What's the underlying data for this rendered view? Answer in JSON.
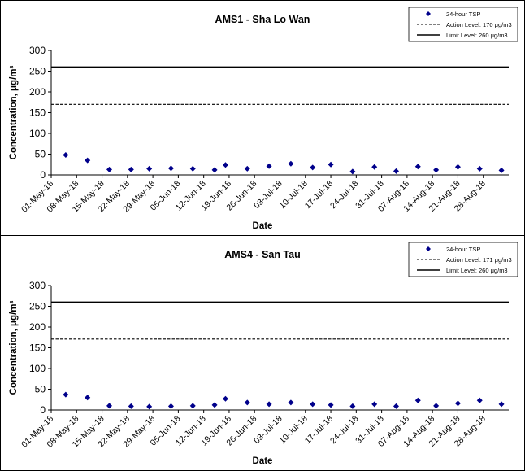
{
  "chart_data": [
    {
      "type": "scatter",
      "title": "AMS1 - Sha Lo Wan",
      "xlabel": "Date",
      "ylabel": "Concentration, μg/m³",
      "ylim": [
        0,
        300
      ],
      "yticks": [
        "0",
        "50",
        "100",
        "150",
        "200",
        "250",
        "300"
      ],
      "xticks": [
        "01-May-18",
        "08-May-18",
        "15-May-18",
        "22-May-18",
        "29-May-18",
        "05-Jun-18",
        "12-Jun-18",
        "19-Jun-18",
        "26-Jun-18",
        "03-Jul-18",
        "10-Jul-18",
        "17-Jul-18",
        "24-Jul-18",
        "31-Jul-18",
        "07-Aug-18",
        "14-Aug-18",
        "21-Aug-18",
        "28-Aug-18"
      ],
      "legend": {
        "position": "top-right",
        "entries": [
          "24-hour TSP",
          "Action Level: 170 μg/m3",
          "Limit Level: 260 μg/m3"
        ]
      },
      "action_level": 170,
      "limit_level": 260,
      "series": [
        {
          "name": "24-hour TSP",
          "color": "#00008b",
          "points": [
            {
              "x": "2018-05-05",
              "y": 48
            },
            {
              "x": "2018-05-11",
              "y": 35
            },
            {
              "x": "2018-05-17",
              "y": 13
            },
            {
              "x": "2018-05-23",
              "y": 13
            },
            {
              "x": "2018-05-28",
              "y": 15
            },
            {
              "x": "2018-06-03",
              "y": 16
            },
            {
              "x": "2018-06-09",
              "y": 15
            },
            {
              "x": "2018-06-15",
              "y": 12
            },
            {
              "x": "2018-06-18",
              "y": 24
            },
            {
              "x": "2018-06-24",
              "y": 15
            },
            {
              "x": "2018-06-30",
              "y": 21
            },
            {
              "x": "2018-07-06",
              "y": 27
            },
            {
              "x": "2018-07-12",
              "y": 18
            },
            {
              "x": "2018-07-17",
              "y": 25
            },
            {
              "x": "2018-07-23",
              "y": 8
            },
            {
              "x": "2018-07-29",
              "y": 19
            },
            {
              "x": "2018-08-04",
              "y": 9
            },
            {
              "x": "2018-08-10",
              "y": 20
            },
            {
              "x": "2018-08-15",
              "y": 12
            },
            {
              "x": "2018-08-21",
              "y": 19
            },
            {
              "x": "2018-08-27",
              "y": 15
            },
            {
              "x": "2018-09-02",
              "y": 11
            }
          ]
        }
      ]
    },
    {
      "type": "scatter",
      "title": "AMS4 - San Tau",
      "xlabel": "Date",
      "ylabel": "Concentration, μg/m³",
      "ylim": [
        0,
        300
      ],
      "yticks": [
        "0",
        "50",
        "100",
        "150",
        "200",
        "250",
        "300"
      ],
      "xticks": [
        "01-May-18",
        "08-May-18",
        "15-May-18",
        "22-May-18",
        "29-May-18",
        "05-Jun-18",
        "12-Jun-18",
        "19-Jun-18",
        "26-Jun-18",
        "03-Jul-18",
        "10-Jul-18",
        "17-Jul-18",
        "24-Jul-18",
        "31-Jul-18",
        "07-Aug-18",
        "14-Aug-18",
        "21-Aug-18",
        "28-Aug-18"
      ],
      "legend": {
        "position": "top-right",
        "entries": [
          "24-hour TSP",
          "Action Level: 171 μg/m3",
          "Limit Level: 260 μg/m3"
        ]
      },
      "action_level": 171,
      "limit_level": 260,
      "series": [
        {
          "name": "24-hour TSP",
          "color": "#00008b",
          "points": [
            {
              "x": "2018-05-05",
              "y": 37
            },
            {
              "x": "2018-05-11",
              "y": 30
            },
            {
              "x": "2018-05-17",
              "y": 10
            },
            {
              "x": "2018-05-23",
              "y": 9
            },
            {
              "x": "2018-05-28",
              "y": 8
            },
            {
              "x": "2018-06-03",
              "y": 9
            },
            {
              "x": "2018-06-09",
              "y": 10
            },
            {
              "x": "2018-06-15",
              "y": 12
            },
            {
              "x": "2018-06-18",
              "y": 27
            },
            {
              "x": "2018-06-24",
              "y": 18
            },
            {
              "x": "2018-06-30",
              "y": 14
            },
            {
              "x": "2018-07-06",
              "y": 18
            },
            {
              "x": "2018-07-12",
              "y": 14
            },
            {
              "x": "2018-07-17",
              "y": 12
            },
            {
              "x": "2018-07-23",
              "y": 9
            },
            {
              "x": "2018-07-29",
              "y": 14
            },
            {
              "x": "2018-08-04",
              "y": 9
            },
            {
              "x": "2018-08-10",
              "y": 23
            },
            {
              "x": "2018-08-15",
              "y": 10
            },
            {
              "x": "2018-08-21",
              "y": 16
            },
            {
              "x": "2018-08-27",
              "y": 23
            },
            {
              "x": "2018-09-02",
              "y": 14
            }
          ]
        }
      ]
    }
  ]
}
